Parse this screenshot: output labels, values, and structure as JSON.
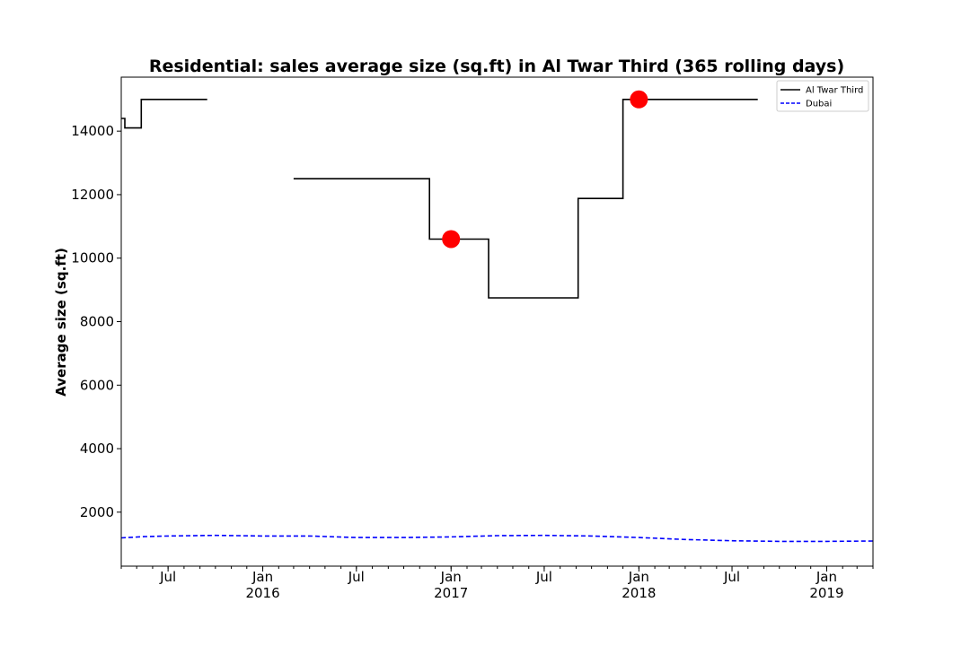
{
  "chart_data": {
    "type": "line",
    "title": "Residential: sales average size (sq.ft) in Al Twar Third (365 rolling days)",
    "xlabel": "",
    "ylabel": "Average size (sq.ft)",
    "xlim": [
      "2015-04-01",
      "2019-04-01"
    ],
    "ylim": [
      300,
      15700
    ],
    "y_ticks": [
      2000,
      4000,
      6000,
      8000,
      10000,
      12000,
      14000
    ],
    "x_ticks": [
      {
        "date": "2015-07-01",
        "label": "Jul",
        "year": ""
      },
      {
        "date": "2016-01-01",
        "label": "Jan",
        "year": "2016"
      },
      {
        "date": "2016-07-01",
        "label": "Jul",
        "year": ""
      },
      {
        "date": "2017-01-01",
        "label": "Jan",
        "year": "2017"
      },
      {
        "date": "2017-07-01",
        "label": "Jul",
        "year": ""
      },
      {
        "date": "2018-01-01",
        "label": "Jan",
        "year": "2018"
      },
      {
        "date": "2018-07-01",
        "label": "Jul",
        "year": ""
      },
      {
        "date": "2019-01-01",
        "label": "Jan",
        "year": "2019"
      }
    ],
    "legend_placement": "top-right",
    "grid": false,
    "series": [
      {
        "name": "Al Twar Third",
        "color": "#000000",
        "style": "solid",
        "segments": [
          [
            {
              "x": "2015-04-01",
              "y": 14400
            },
            {
              "x": "2015-04-08",
              "y": 14400
            },
            {
              "x": "2015-04-08",
              "y": 14100
            },
            {
              "x": "2015-05-10",
              "y": 14100
            },
            {
              "x": "2015-05-10",
              "y": 15000
            },
            {
              "x": "2015-09-15",
              "y": 15000
            }
          ],
          [
            {
              "x": "2016-03-01",
              "y": 12500
            },
            {
              "x": "2016-11-20",
              "y": 12500
            },
            {
              "x": "2016-11-20",
              "y": 10600
            },
            {
              "x": "2017-03-15",
              "y": 10600
            },
            {
              "x": "2017-03-15",
              "y": 8750
            },
            {
              "x": "2017-09-05",
              "y": 8750
            },
            {
              "x": "2017-09-05",
              "y": 11880
            },
            {
              "x": "2017-12-01",
              "y": 11880
            },
            {
              "x": "2017-12-01",
              "y": 15000
            },
            {
              "x": "2018-08-20",
              "y": 15000
            }
          ]
        ]
      },
      {
        "name": "Dubai",
        "color": "#0000ff",
        "style": "dashed",
        "segments": [
          [
            {
              "x": "2015-04-01",
              "y": 1190
            },
            {
              "x": "2015-05-15",
              "y": 1230
            },
            {
              "x": "2015-07-01",
              "y": 1250
            },
            {
              "x": "2015-10-01",
              "y": 1270
            },
            {
              "x": "2016-01-01",
              "y": 1250
            },
            {
              "x": "2016-04-01",
              "y": 1250
            },
            {
              "x": "2016-07-01",
              "y": 1200
            },
            {
              "x": "2016-10-01",
              "y": 1200
            },
            {
              "x": "2017-01-01",
              "y": 1220
            },
            {
              "x": "2017-04-01",
              "y": 1260
            },
            {
              "x": "2017-07-01",
              "y": 1270
            },
            {
              "x": "2017-10-01",
              "y": 1250
            },
            {
              "x": "2018-01-01",
              "y": 1200
            },
            {
              "x": "2018-04-01",
              "y": 1140
            },
            {
              "x": "2018-07-01",
              "y": 1100
            },
            {
              "x": "2018-10-01",
              "y": 1080
            },
            {
              "x": "2019-01-01",
              "y": 1080
            },
            {
              "x": "2019-04-01",
              "y": 1090
            }
          ]
        ]
      }
    ],
    "markers": [
      {
        "x": "2017-01-01",
        "y": 10600,
        "color": "#ff0000"
      },
      {
        "x": "2018-01-01",
        "y": 15000,
        "color": "#ff0000"
      }
    ]
  }
}
